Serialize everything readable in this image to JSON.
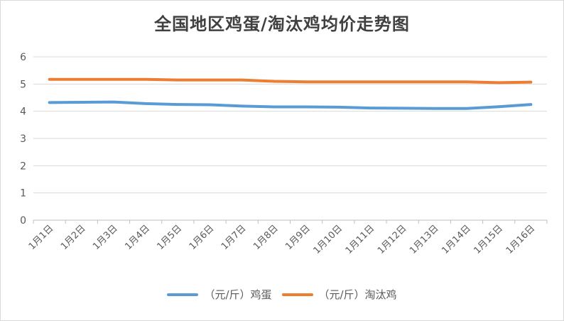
{
  "chart_data": {
    "type": "line",
    "title": "全国地区鸡蛋/淘汰鸡均价走势图",
    "xlabel": "",
    "ylabel": "",
    "categories": [
      "1月1日",
      "1月2日",
      "1月3日",
      "1月4日",
      "1月5日",
      "1月6日",
      "1月7日",
      "1月8日",
      "1月9日",
      "1月10日",
      "1月11日",
      "1月12日",
      "1月13日",
      "1月14日",
      "1月15日",
      "1月16日"
    ],
    "ylim": [
      0,
      6
    ],
    "yticks": [
      "0",
      "1",
      "2",
      "3",
      "4",
      "5",
      "6"
    ],
    "grid": true,
    "legend_position": "bottom",
    "series": [
      {
        "name": "（元/斤）鸡蛋",
        "color": "#5b9bd5",
        "values": [
          4.32,
          4.33,
          4.34,
          4.28,
          4.25,
          4.24,
          4.19,
          4.16,
          4.16,
          4.15,
          4.12,
          4.11,
          4.1,
          4.1,
          4.17,
          4.25
        ]
      },
      {
        "name": "（元/斤）淘汰鸡",
        "color": "#ed7d31",
        "values": [
          5.17,
          5.17,
          5.17,
          5.17,
          5.15,
          5.15,
          5.15,
          5.1,
          5.08,
          5.08,
          5.08,
          5.08,
          5.08,
          5.08,
          5.05,
          5.07
        ]
      }
    ]
  }
}
